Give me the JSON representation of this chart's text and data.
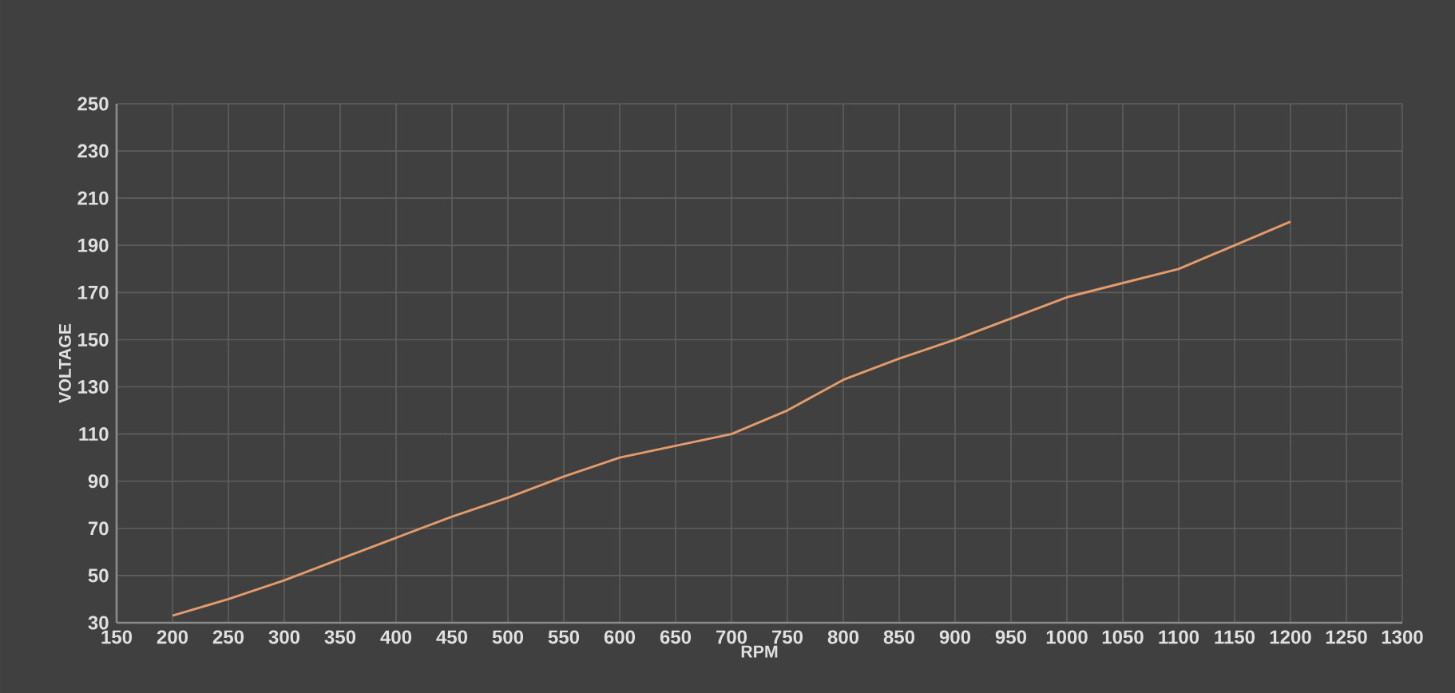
{
  "chart_data": {
    "type": "line",
    "xlabel": "RPM",
    "ylabel": "VOLTAGE",
    "x": [
      200,
      250,
      300,
      350,
      400,
      450,
      500,
      550,
      600,
      650,
      700,
      750,
      800,
      850,
      900,
      950,
      1000,
      1050,
      1100,
      1150,
      1200
    ],
    "series": [
      {
        "color": "#e39b6a",
        "values": [
          33,
          40,
          48,
          57,
          66,
          75,
          83,
          92,
          100,
          105,
          110,
          120,
          133,
          142,
          150,
          159,
          168,
          174,
          180,
          190,
          200
        ]
      }
    ],
    "xlim": [
      150,
      1300
    ],
    "xticks": [
      150,
      200,
      250,
      300,
      350,
      400,
      450,
      500,
      550,
      600,
      650,
      700,
      750,
      800,
      850,
      900,
      950,
      1000,
      1050,
      1100,
      1150,
      1200,
      1250,
      1300
    ],
    "ylim": [
      30,
      250
    ],
    "yticks": [
      30,
      50,
      70,
      90,
      110,
      130,
      150,
      170,
      190,
      210,
      230,
      250
    ],
    "grid": true,
    "marker": "none",
    "line_style": "solid"
  }
}
